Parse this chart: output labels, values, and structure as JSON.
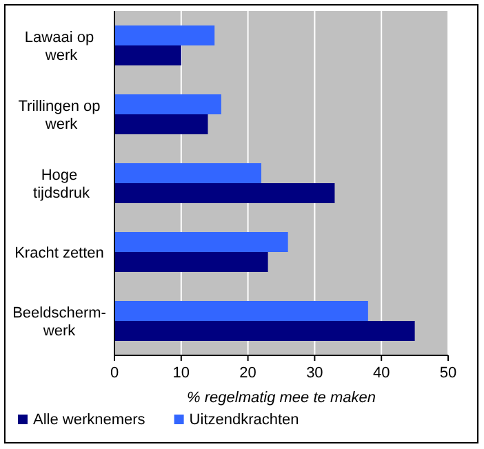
{
  "chart_data": {
    "type": "bar",
    "orientation": "horizontal",
    "xlabel": "% regelmatig mee te maken",
    "categories": [
      "Lawaai op werk",
      "Trillingen op werk",
      "Hoge tijdsdruk",
      "Kracht zetten",
      "Beeldscherm-werk"
    ],
    "series": [
      {
        "name": "Alle werknemers",
        "color": "#000080",
        "values": [
          10,
          14,
          33,
          23,
          45
        ]
      },
      {
        "name": "Uitzendkrachten",
        "color": "#3366ff",
        "values": [
          15,
          16,
          22,
          26,
          38
        ]
      }
    ],
    "xlim": [
      0,
      50
    ],
    "xticks": [
      0,
      10,
      20,
      30,
      40,
      50
    ],
    "grid": "x",
    "legend": "bottom"
  }
}
